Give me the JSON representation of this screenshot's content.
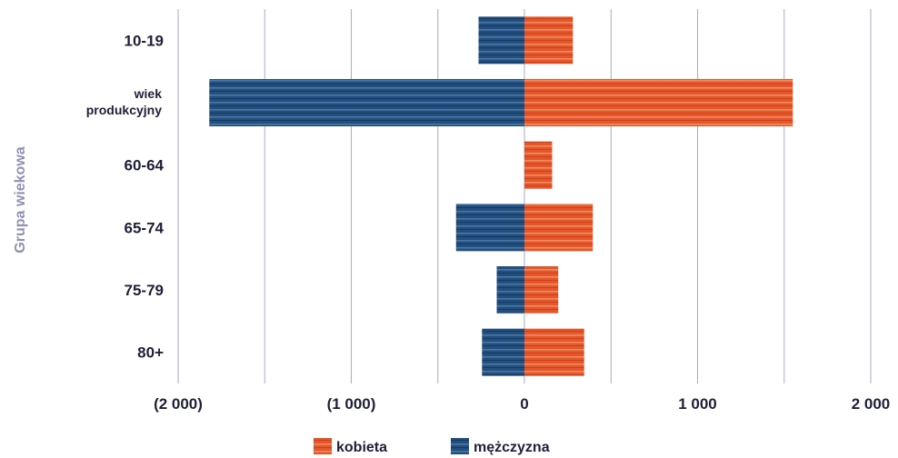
{
  "chart_data": {
    "type": "bar",
    "orientation": "horizontal",
    "categories": [
      "10-19",
      "wiek produkcyjny",
      "60-64",
      "65-74",
      "75-79",
      "80+"
    ],
    "series": [
      {
        "name": "kobieta",
        "values": [
          280,
          1550,
          160,
          395,
          195,
          345
        ],
        "color": "#e5562a"
      },
      {
        "name": "mężczyzna",
        "values": [
          -265,
          -1820,
          0,
          -395,
          -160,
          -245
        ],
        "color": "#234f7e"
      }
    ],
    "xlim": [
      -2000,
      2000
    ],
    "xticks": [
      -2000,
      -1000,
      0,
      1000,
      2000
    ],
    "xtick_labels": [
      "(2 000)",
      "(1 000)",
      "0",
      "1 000",
      "2 000"
    ],
    "ylabel": "Grupa wiekowa",
    "xlabel": "",
    "grid": "vertical",
    "legend_position": "bottom"
  }
}
